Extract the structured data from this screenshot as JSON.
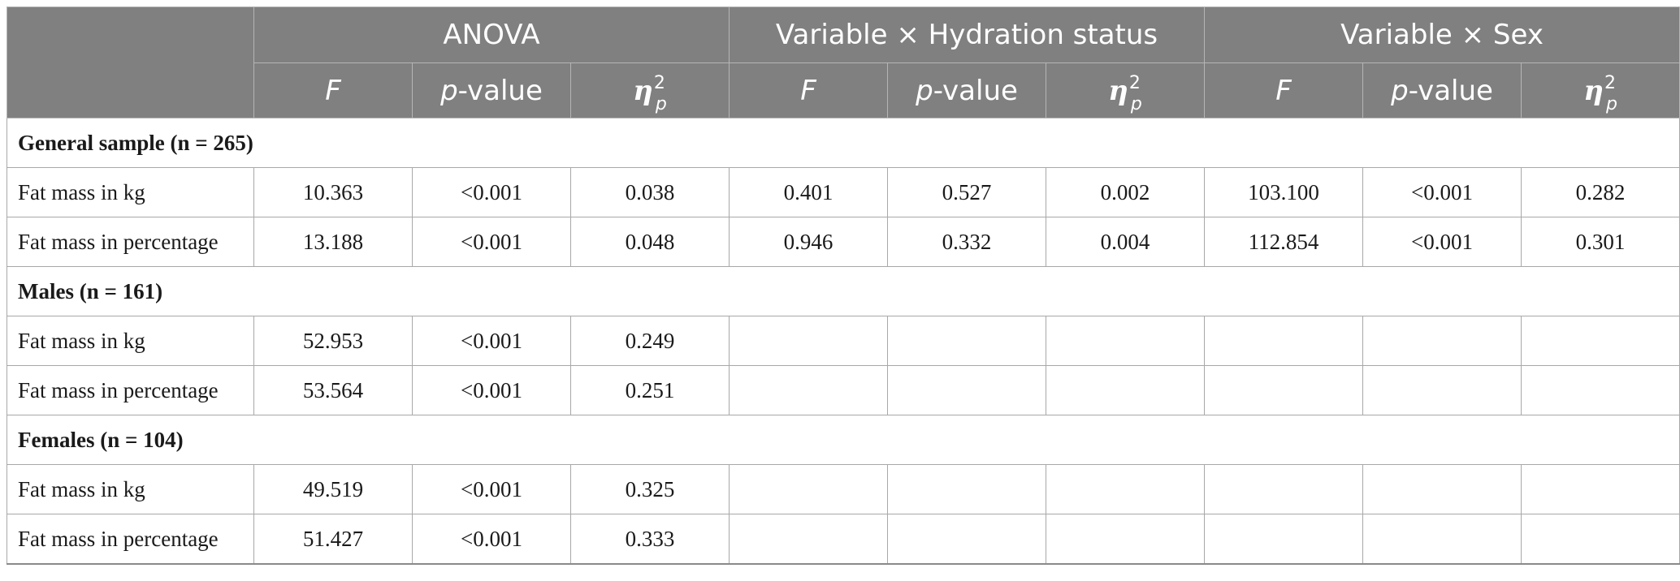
{
  "header": {
    "groups": [
      {
        "label": "ANOVA"
      },
      {
        "label": "Variable × Hydration status"
      },
      {
        "label": "Variable × Sex"
      }
    ],
    "sub": {
      "f_label": "F",
      "p_letter": "p",
      "p_rest": "-value",
      "eta_symbol": "η",
      "eta_sup": "2",
      "eta_sub": "p"
    }
  },
  "sections": [
    {
      "title": "General sample (n = 265)",
      "rows": [
        {
          "label": "Fat mass in kg",
          "values": [
            "10.363",
            "<0.001",
            "0.038",
            "0.401",
            "0.527",
            "0.002",
            "103.100",
            "<0.001",
            "0.282"
          ]
        },
        {
          "label": "Fat mass in percentage",
          "values": [
            "13.188",
            "<0.001",
            "0.048",
            "0.946",
            "0.332",
            "0.004",
            "112.854",
            "<0.001",
            "0.301"
          ]
        }
      ]
    },
    {
      "title": "Males (n = 161)",
      "rows": [
        {
          "label": "Fat mass in kg",
          "values": [
            "52.953",
            "<0.001",
            "0.249",
            "",
            "",
            "",
            "",
            "",
            ""
          ]
        },
        {
          "label": "Fat mass in percentage",
          "values": [
            "53.564",
            "<0.001",
            "0.251",
            "",
            "",
            "",
            "",
            "",
            ""
          ]
        }
      ]
    },
    {
      "title": "Females (n = 104)",
      "rows": [
        {
          "label": "Fat mass in kg",
          "values": [
            "49.519",
            "<0.001",
            "0.325",
            "",
            "",
            "",
            "",
            "",
            ""
          ]
        },
        {
          "label": "Fat mass in percentage",
          "values": [
            "51.427",
            "<0.001",
            "0.333",
            "",
            "",
            "",
            "",
            "",
            ""
          ]
        }
      ]
    }
  ]
}
